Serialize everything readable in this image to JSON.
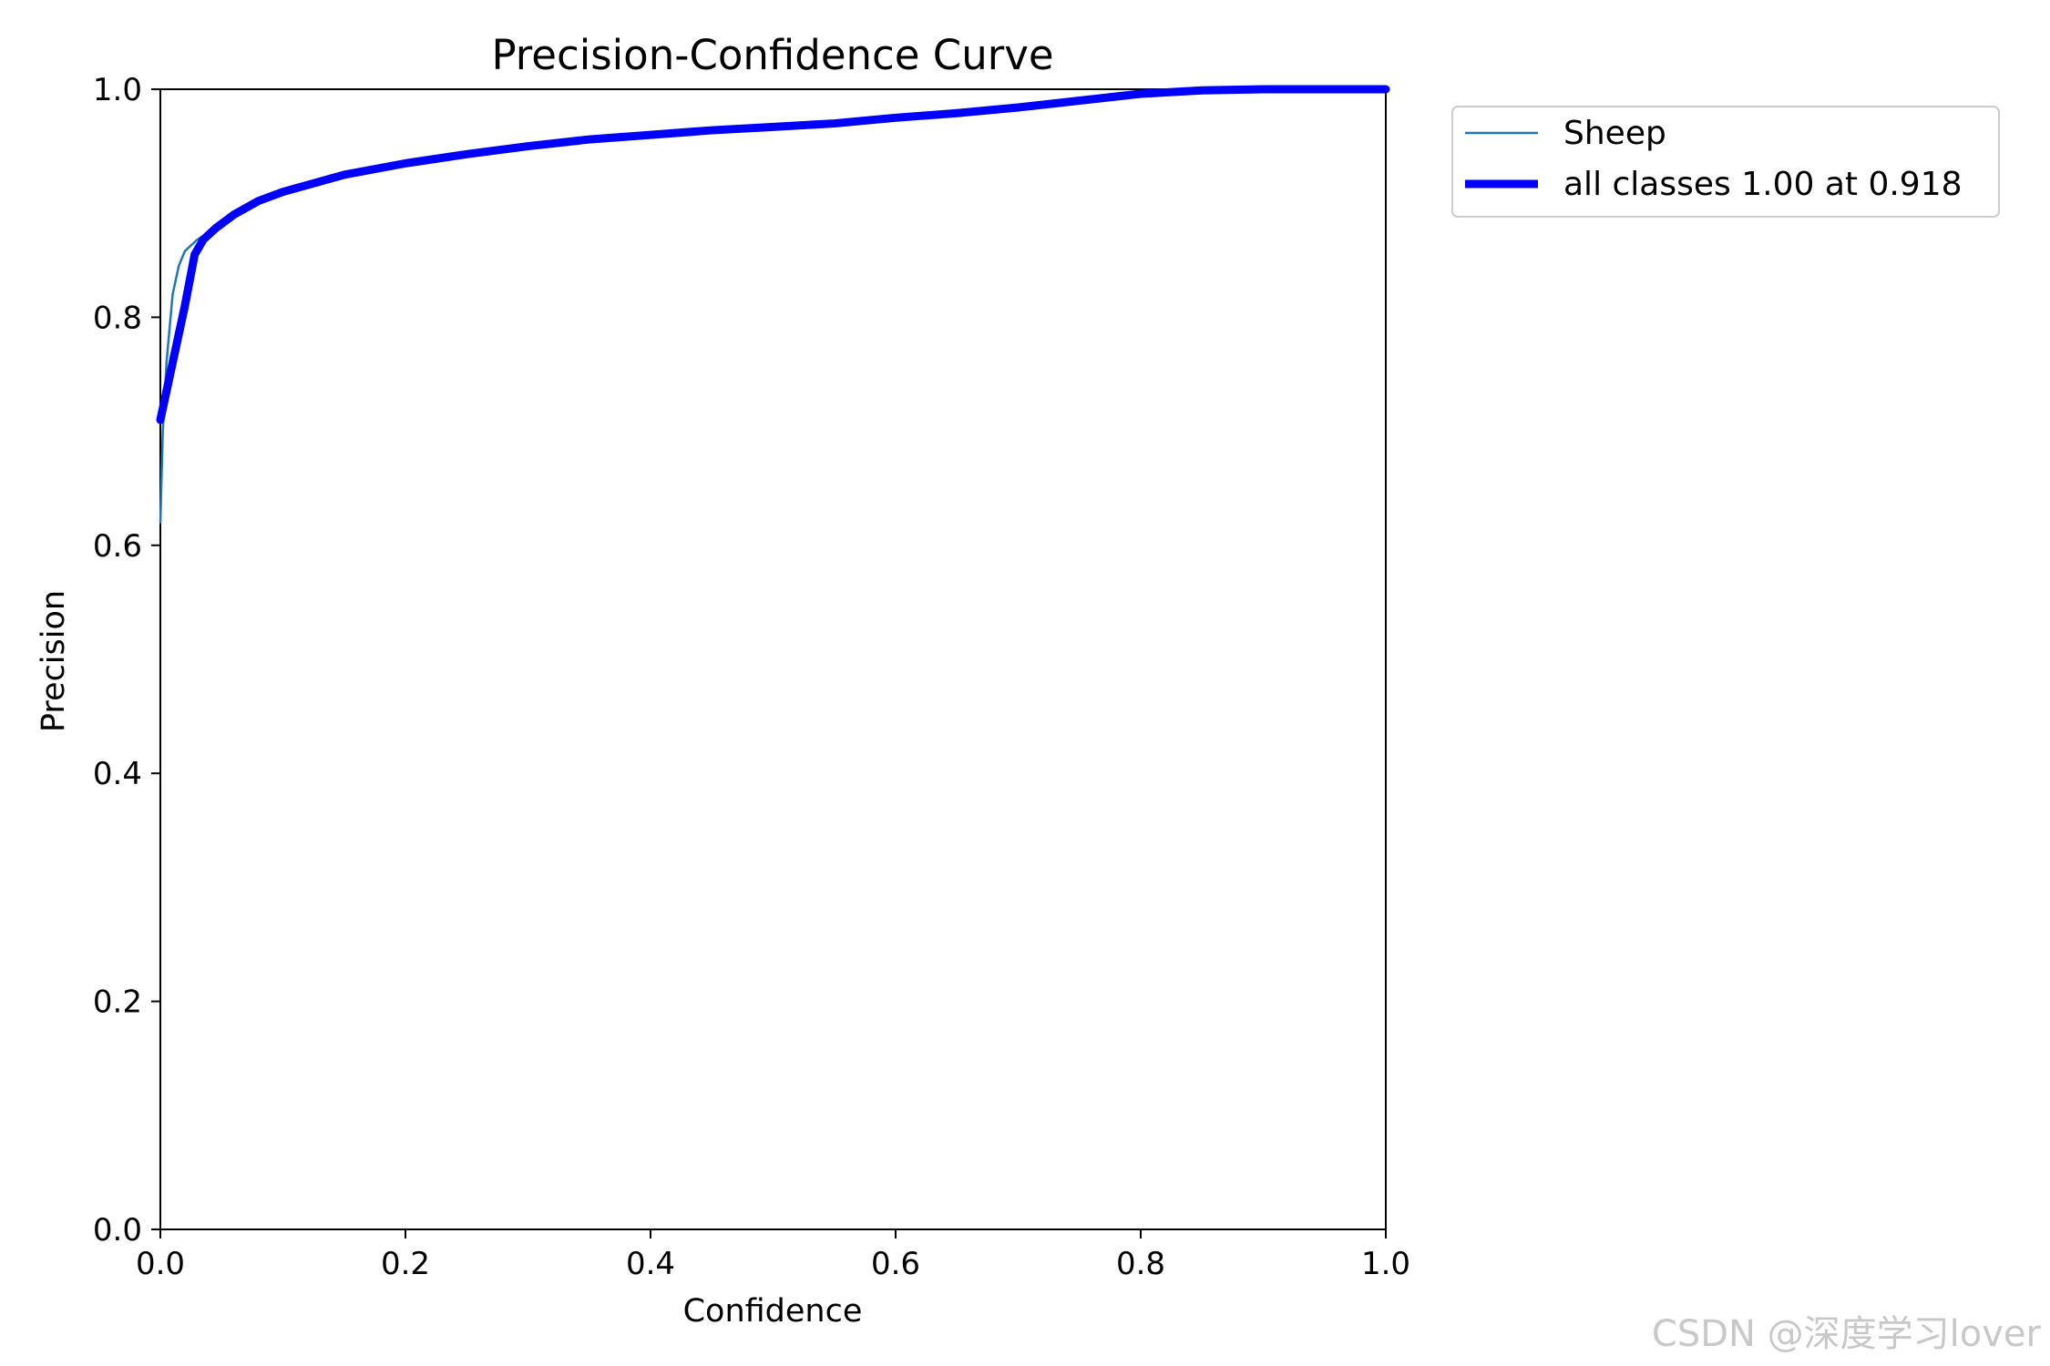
{
  "chart_data": {
    "type": "line",
    "title": "Precision-Confidence Curve",
    "xlabel": "Confidence",
    "ylabel": "Precision",
    "xlim": [
      0.0,
      1.0
    ],
    "ylim": [
      0.0,
      1.0
    ],
    "grid": false,
    "legend_position": "outside-top-right",
    "x_ticks": [
      "0.0",
      "0.2",
      "0.4",
      "0.6",
      "0.8",
      "1.0"
    ],
    "y_ticks": [
      "0.0",
      "0.2",
      "0.4",
      "0.6",
      "0.8",
      "1.0"
    ],
    "series": [
      {
        "name": "Sheep",
        "color": "#1f77b4",
        "x": [
          0.0,
          0.002,
          0.005,
          0.01,
          0.015,
          0.02,
          0.03,
          0.04,
          0.06,
          0.08,
          0.1,
          0.15,
          0.2,
          0.25,
          0.3,
          0.35,
          0.4,
          0.45,
          0.5,
          0.55,
          0.6,
          0.65,
          0.7,
          0.75,
          0.8,
          0.85,
          0.9,
          0.95,
          1.0
        ],
        "y": [
          0.62,
          0.7,
          0.76,
          0.82,
          0.845,
          0.858,
          0.868,
          0.875,
          0.89,
          0.902,
          0.91,
          0.925,
          0.935,
          0.943,
          0.95,
          0.956,
          0.96,
          0.964,
          0.967,
          0.97,
          0.975,
          0.979,
          0.984,
          0.99,
          0.996,
          0.999,
          1.0,
          1.0,
          1.0
        ]
      },
      {
        "name": "all classes 1.00 at 0.918",
        "color": "#0000ff",
        "x": [
          0.0,
          0.01,
          0.02,
          0.028,
          0.035,
          0.045,
          0.06,
          0.08,
          0.1,
          0.15,
          0.2,
          0.25,
          0.3,
          0.35,
          0.4,
          0.45,
          0.5,
          0.55,
          0.6,
          0.65,
          0.7,
          0.75,
          0.8,
          0.85,
          0.9,
          0.95,
          1.0
        ],
        "y": [
          0.71,
          0.76,
          0.81,
          0.855,
          0.868,
          0.878,
          0.89,
          0.902,
          0.91,
          0.925,
          0.935,
          0.943,
          0.95,
          0.956,
          0.96,
          0.964,
          0.967,
          0.97,
          0.975,
          0.979,
          0.984,
          0.99,
          0.996,
          0.999,
          1.0,
          1.0,
          1.0
        ]
      }
    ]
  },
  "watermark": "CSDN @深度学习lover"
}
